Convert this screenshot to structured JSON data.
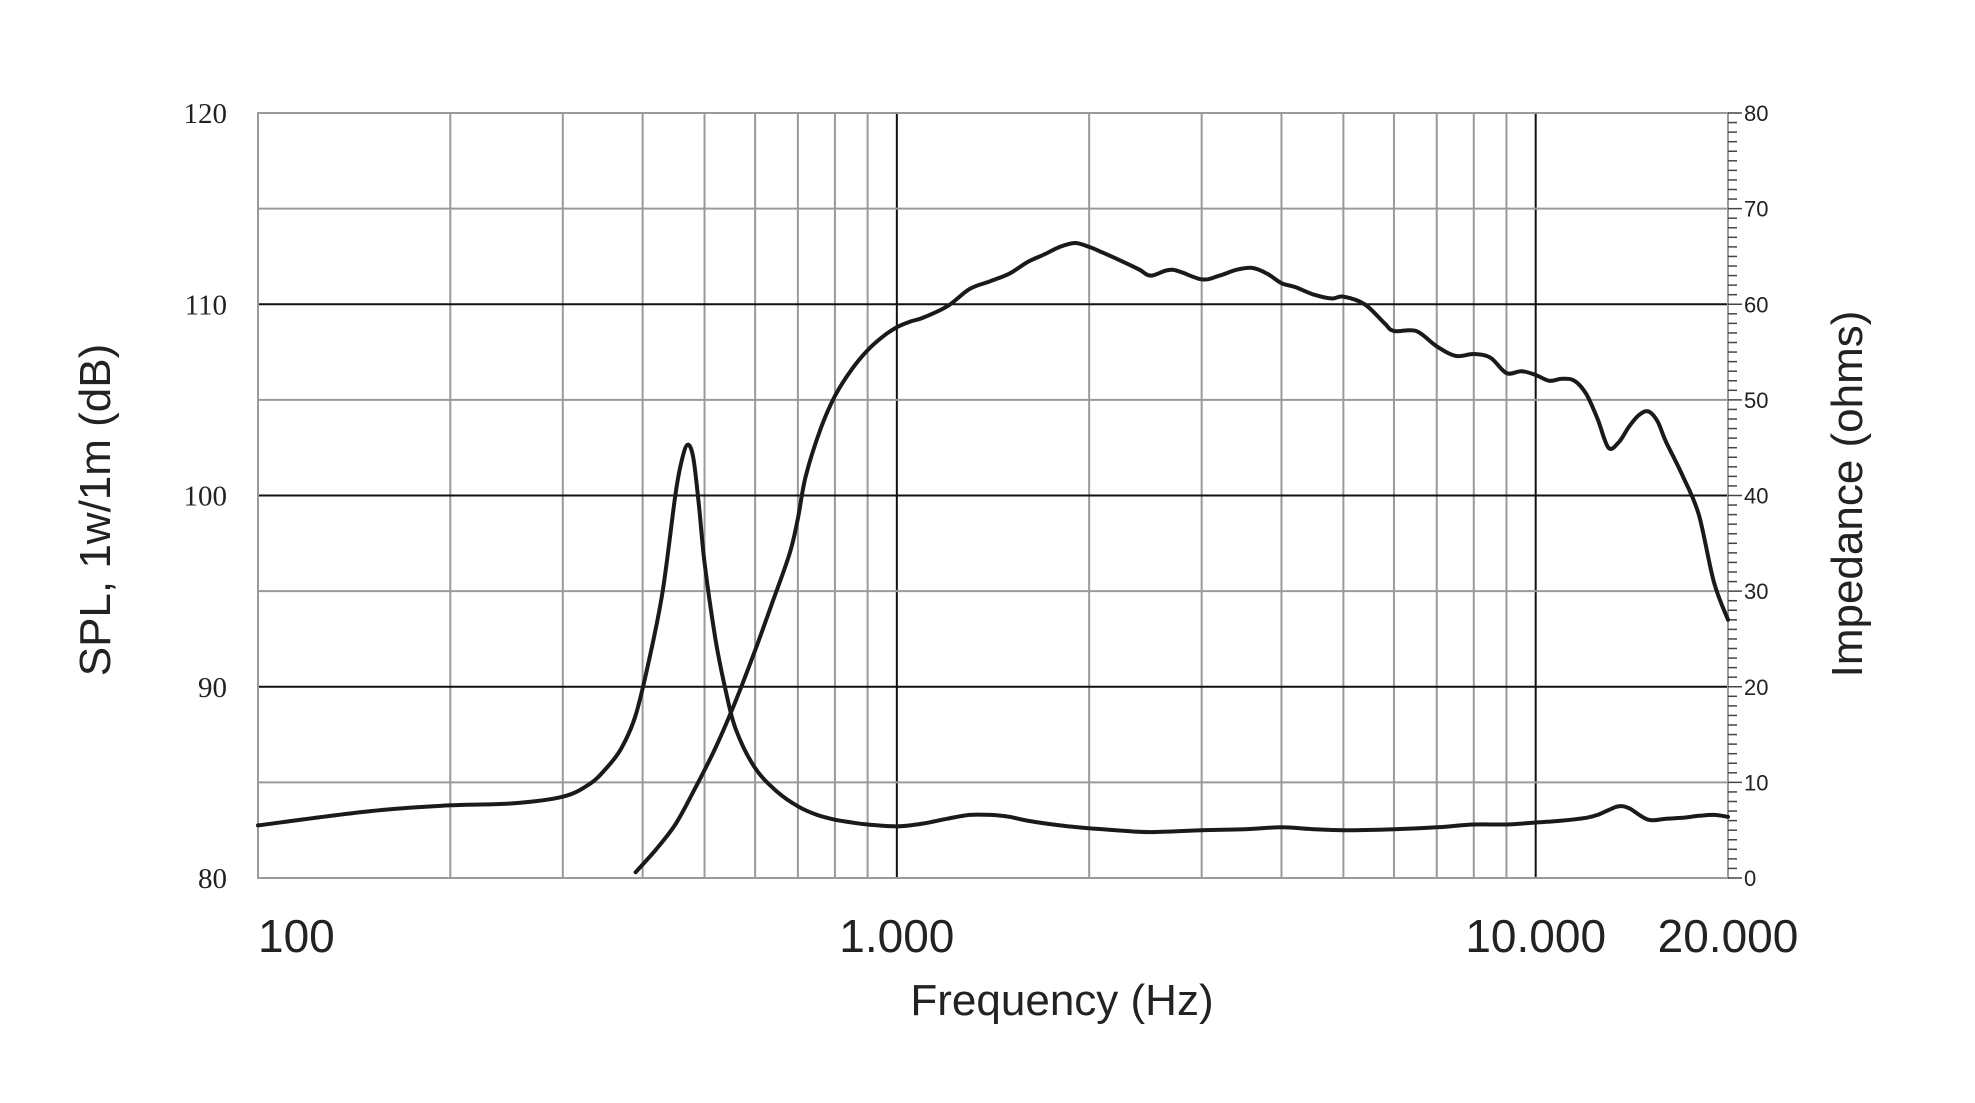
{
  "chart_data": {
    "type": "line",
    "xlabel": "Frequency (Hz)",
    "ylabel": "SPL, 1w/1m (dB)",
    "y2label": "Impedance (ohms)",
    "x_scale": "log",
    "xlim": [
      100,
      20000
    ],
    "ylim": [
      80,
      120
    ],
    "y2lim": [
      0,
      80
    ],
    "x_ticks": [
      {
        "value": 100,
        "label": "100"
      },
      {
        "value": 1000,
        "label": "1.000"
      },
      {
        "value": 10000,
        "label": "10.000"
      },
      {
        "value": 20000,
        "label": "20.000"
      }
    ],
    "y_ticks": [
      {
        "value": 80,
        "label": "80"
      },
      {
        "value": 90,
        "label": "90"
      },
      {
        "value": 100,
        "label": "100"
      },
      {
        "value": 110,
        "label": "110"
      },
      {
        "value": 120,
        "label": "120"
      }
    ],
    "y2_ticks": [
      {
        "value": 0,
        "label": "0"
      },
      {
        "value": 10,
        "label": "10"
      },
      {
        "value": 20,
        "label": "20"
      },
      {
        "value": 30,
        "label": "30"
      },
      {
        "value": 40,
        "label": "40"
      },
      {
        "value": 50,
        "label": "50"
      },
      {
        "value": 60,
        "label": "60"
      },
      {
        "value": 70,
        "label": "70"
      },
      {
        "value": 80,
        "label": "80"
      }
    ],
    "grid": true,
    "series": [
      {
        "axis": "left",
        "x": [
          390,
          420,
          450,
          480,
          520,
          560,
          600,
          640,
          680,
          700,
          720,
          760,
          800,
          850,
          900,
          950,
          1000,
          1050,
          1100,
          1200,
          1300,
          1400,
          1500,
          1600,
          1700,
          1800,
          1900,
          2000,
          2100,
          2200,
          2300,
          2400,
          2500,
          2700,
          3000,
          3200,
          3400,
          3600,
          3800,
          4000,
          4200,
          4500,
          4800,
          5000,
          5400,
          5800,
          6000,
          6500,
          7000,
          7500,
          8000,
          8500,
          9000,
          9500,
          10000,
          10500,
          11000,
          11500,
          12000,
          12500,
          13000,
          13500,
          14000,
          14500,
          15000,
          15500,
          16000,
          17000,
          18000,
          19000,
          20000
        ],
        "y": [
          80.3,
          81.5,
          82.8,
          84.5,
          86.8,
          89.3,
          91.9,
          94.5,
          97.0,
          98.8,
          101.0,
          103.5,
          105.2,
          106.6,
          107.6,
          108.3,
          108.8,
          109.1,
          109.3,
          109.9,
          110.8,
          111.2,
          111.6,
          112.2,
          112.6,
          113.0,
          113.2,
          113.0,
          112.7,
          112.4,
          112.1,
          111.8,
          111.5,
          111.8,
          111.3,
          111.5,
          111.8,
          111.9,
          111.6,
          111.1,
          110.9,
          110.5,
          110.3,
          110.4,
          110.0,
          109.0,
          108.6,
          108.6,
          107.8,
          107.3,
          107.4,
          107.2,
          106.4,
          106.5,
          106.3,
          106.0,
          106.1,
          106.0,
          105.3,
          104.0,
          102.5,
          102.8,
          103.6,
          104.2,
          104.4,
          103.9,
          102.8,
          101.0,
          99.0,
          95.5,
          93.5
        ]
      },
      {
        "axis": "right",
        "x": [
          100,
          150,
          200,
          250,
          300,
          330,
          350,
          370,
          390,
          410,
          430,
          450,
          460,
          470,
          480,
          490,
          500,
          520,
          540,
          560,
          600,
          650,
          700,
          750,
          800,
          850,
          900,
          1000,
          1100,
          1200,
          1300,
          1400,
          1500,
          1600,
          1800,
          2000,
          2200,
          2500,
          3000,
          3500,
          4000,
          4500,
          5000,
          6000,
          7000,
          8000,
          9000,
          10000,
          11000,
          12000,
          12500,
          13000,
          13500,
          14000,
          15000,
          16000,
          17000,
          18000,
          19000,
          20000
        ],
        "y": [
          5.5,
          7.0,
          7.6,
          7.8,
          8.5,
          9.8,
          11.4,
          13.5,
          17.0,
          23.0,
          30.0,
          40.0,
          43.5,
          45.3,
          44.0,
          39.0,
          33.0,
          25.0,
          19.5,
          15.5,
          11.5,
          9.0,
          7.5,
          6.6,
          6.1,
          5.8,
          5.6,
          5.4,
          5.7,
          6.2,
          6.6,
          6.6,
          6.4,
          6.0,
          5.5,
          5.2,
          5.0,
          4.8,
          5.0,
          5.1,
          5.3,
          5.1,
          5.0,
          5.1,
          5.3,
          5.6,
          5.6,
          5.8,
          6.0,
          6.3,
          6.6,
          7.1,
          7.5,
          7.3,
          6.1,
          6.2,
          6.3,
          6.5,
          6.6,
          6.4
        ]
      }
    ]
  }
}
